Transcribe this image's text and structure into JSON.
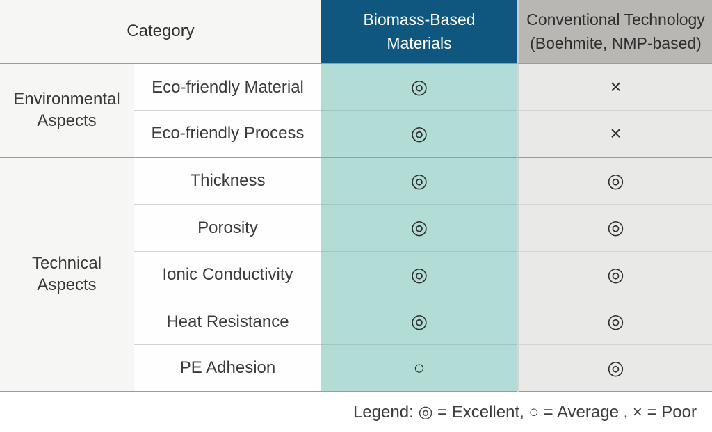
{
  "header": {
    "category": "Category",
    "biomass_line1": "Biomass-Based",
    "biomass_line2": "Materials",
    "conventional_line1": "Conventional Technology",
    "conventional_line2": "(Boehmite, NMP-based)"
  },
  "groups": [
    {
      "label": "Environmental Aspects"
    },
    {
      "label": "Technical Aspects"
    }
  ],
  "rows": [
    {
      "group": "Environmental Aspects",
      "item": "Eco-friendly Material",
      "biomass": "◎",
      "conventional": "×"
    },
    {
      "group": "Environmental Aspects",
      "item": "Eco-friendly Process",
      "biomass": "◎",
      "conventional": "×"
    },
    {
      "group": "Technical Aspects",
      "item": "Thickness",
      "biomass": "◎",
      "conventional": "◎"
    },
    {
      "group": "Technical Aspects",
      "item": "Porosity",
      "biomass": "◎",
      "conventional": "◎"
    },
    {
      "group": "Technical Aspects",
      "item": "Ionic Conductivity",
      "biomass": "◎",
      "conventional": "◎"
    },
    {
      "group": "Technical Aspects",
      "item": "Heat Resistance",
      "biomass": "◎",
      "conventional": "◎"
    },
    {
      "group": "Technical Aspects",
      "item": "PE Adhesion",
      "biomass": "○",
      "conventional": "◎"
    }
  ],
  "legend": {
    "text": "Legend: ◎ = Excellent, ○ = Average , × = Poor"
  },
  "colors": {
    "biomass_header_bg": "#0f577e",
    "conventional_header_bg": "#b9b7b4",
    "biomass_cell_bg": "#b2dcd6",
    "conventional_cell_bg": "#e9e9e8",
    "category_bg": "#f6f6f5",
    "strong_border": "#9b9b99",
    "light_border": "#d3d3d1",
    "text": "#3a3a3a"
  },
  "chart_data": {
    "type": "table",
    "title": "",
    "columns": [
      "Category (group)",
      "Category (item)",
      "Biomass-Based Materials",
      "Conventional Technology (Boehmite, NMP-based)"
    ],
    "rows": [
      [
        "Environmental Aspects",
        "Eco-friendly Material",
        "◎",
        "×"
      ],
      [
        "Environmental Aspects",
        "Eco-friendly Process",
        "◎",
        "×"
      ],
      [
        "Technical Aspects",
        "Thickness",
        "◎",
        "◎"
      ],
      [
        "Technical Aspects",
        "Porosity",
        "◎",
        "◎"
      ],
      [
        "Technical Aspects",
        "Ionic Conductivity",
        "◎",
        "◎"
      ],
      [
        "Technical Aspects",
        "Heat Resistance",
        "◎",
        "◎"
      ],
      [
        "Technical Aspects",
        "PE Adhesion",
        "○",
        "◎"
      ]
    ],
    "symbol_meanings": {
      "◎": "Excellent",
      "○": "Average",
      "×": "Poor"
    },
    "legend": "Legend: ◎ = Excellent, ○ = Average , × = Poor",
    "legend_position": "bottom-right"
  }
}
